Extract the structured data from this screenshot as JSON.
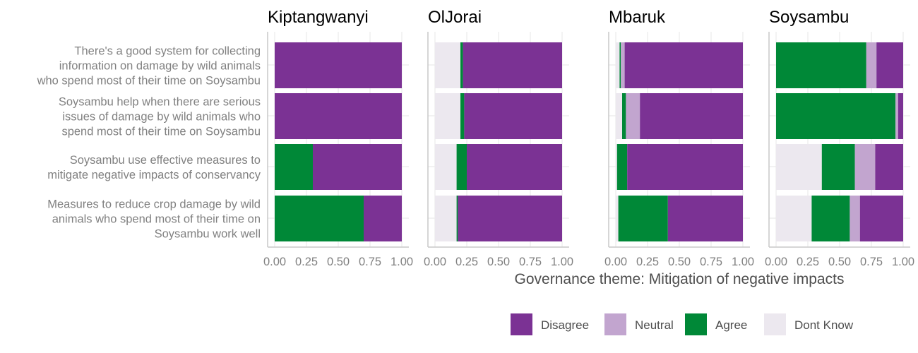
{
  "chart_data": {
    "type": "bar",
    "orientation": "horizontal",
    "stacked": true,
    "xlabel": "Governance theme: Mitigation of negative impacts",
    "ylabel": "",
    "xlim": [
      0,
      1
    ],
    "x_ticks": [
      "0.00",
      "0.25",
      "0.50",
      "0.75",
      "1.00"
    ],
    "grid": true,
    "legend_position": "bottom-right",
    "categories": [
      "There's a good system for collecting information on damage by wild animals who spend most of their time on Soysambu",
      "Soysambu help when there are serious issues of damage by wild animals who spend most of their time on Soysambu",
      "Soysambu use effective measures to mitigate negative impacts of conservancy",
      "Measures to reduce crop damage by wild animals who spend most of their time on Soysambu work well"
    ],
    "category_lines": [
      [
        "There's a good system for collecting",
        "information on damage by wild animals",
        "who spend most of their time on Soysambu"
      ],
      [
        "Soysambu help when there are serious",
        "issues of damage by wild animals who",
        "spend most of their time on Soysambu"
      ],
      [
        "Soysambu use effective measures to",
        "mitigate negative impacts of conservancy"
      ],
      [
        "Measures to reduce crop damage by wild",
        "animals who spend most of their time on",
        "Soysambu work well"
      ]
    ],
    "stack_order": [
      "Dont Know",
      "Agree",
      "Neutral",
      "Disagree"
    ],
    "legend": [
      {
        "name": "Disagree",
        "color": "#7b3294"
      },
      {
        "name": "Neutral",
        "color": "#c2a5cf"
      },
      {
        "name": "Agree",
        "color": "#008837"
      },
      {
        "name": "Dont Know",
        "color": "#ece8ef"
      }
    ],
    "facets": [
      {
        "title": "Kiptangwanyi",
        "series": [
          {
            "name": "Dont Know",
            "values": [
              0,
              0,
              0,
              0
            ]
          },
          {
            "name": "Agree",
            "values": [
              0,
              0,
              0.3,
              0.7
            ]
          },
          {
            "name": "Neutral",
            "values": [
              0,
              0,
              0,
              0
            ]
          },
          {
            "name": "Disagree",
            "values": [
              1.0,
              1.0,
              0.7,
              0.3
            ]
          }
        ]
      },
      {
        "title": "OlJorai",
        "series": [
          {
            "name": "Dont Know",
            "values": [
              0.2,
              0.2,
              0.17,
              0.17
            ]
          },
          {
            "name": "Agree",
            "values": [
              0.02,
              0.03,
              0.08,
              0.01
            ]
          },
          {
            "name": "Neutral",
            "values": [
              0,
              0,
              0,
              0
            ]
          },
          {
            "name": "Disagree",
            "values": [
              0.78,
              0.77,
              0.75,
              0.82
            ]
          }
        ]
      },
      {
        "title": "Mbaruk",
        "series": [
          {
            "name": "Dont Know",
            "values": [
              0.03,
              0.05,
              0.01,
              0.02
            ]
          },
          {
            "name": "Agree",
            "values": [
              0.01,
              0.03,
              0.08,
              0.39
            ]
          },
          {
            "name": "Neutral",
            "values": [
              0.03,
              0.11,
              0,
              0
            ]
          },
          {
            "name": "Disagree",
            "values": [
              0.93,
              0.81,
              0.91,
              0.59
            ]
          }
        ]
      },
      {
        "title": "Soysambu",
        "series": [
          {
            "name": "Dont Know",
            "values": [
              0,
              0,
              0.36,
              0.28
            ]
          },
          {
            "name": "Agree",
            "values": [
              0.71,
              0.94,
              0.26,
              0.3
            ]
          },
          {
            "name": "Neutral",
            "values": [
              0.08,
              0.02,
              0.16,
              0.08
            ]
          },
          {
            "name": "Disagree",
            "values": [
              0.21,
              0.04,
              0.22,
              0.34
            ]
          }
        ]
      }
    ]
  }
}
